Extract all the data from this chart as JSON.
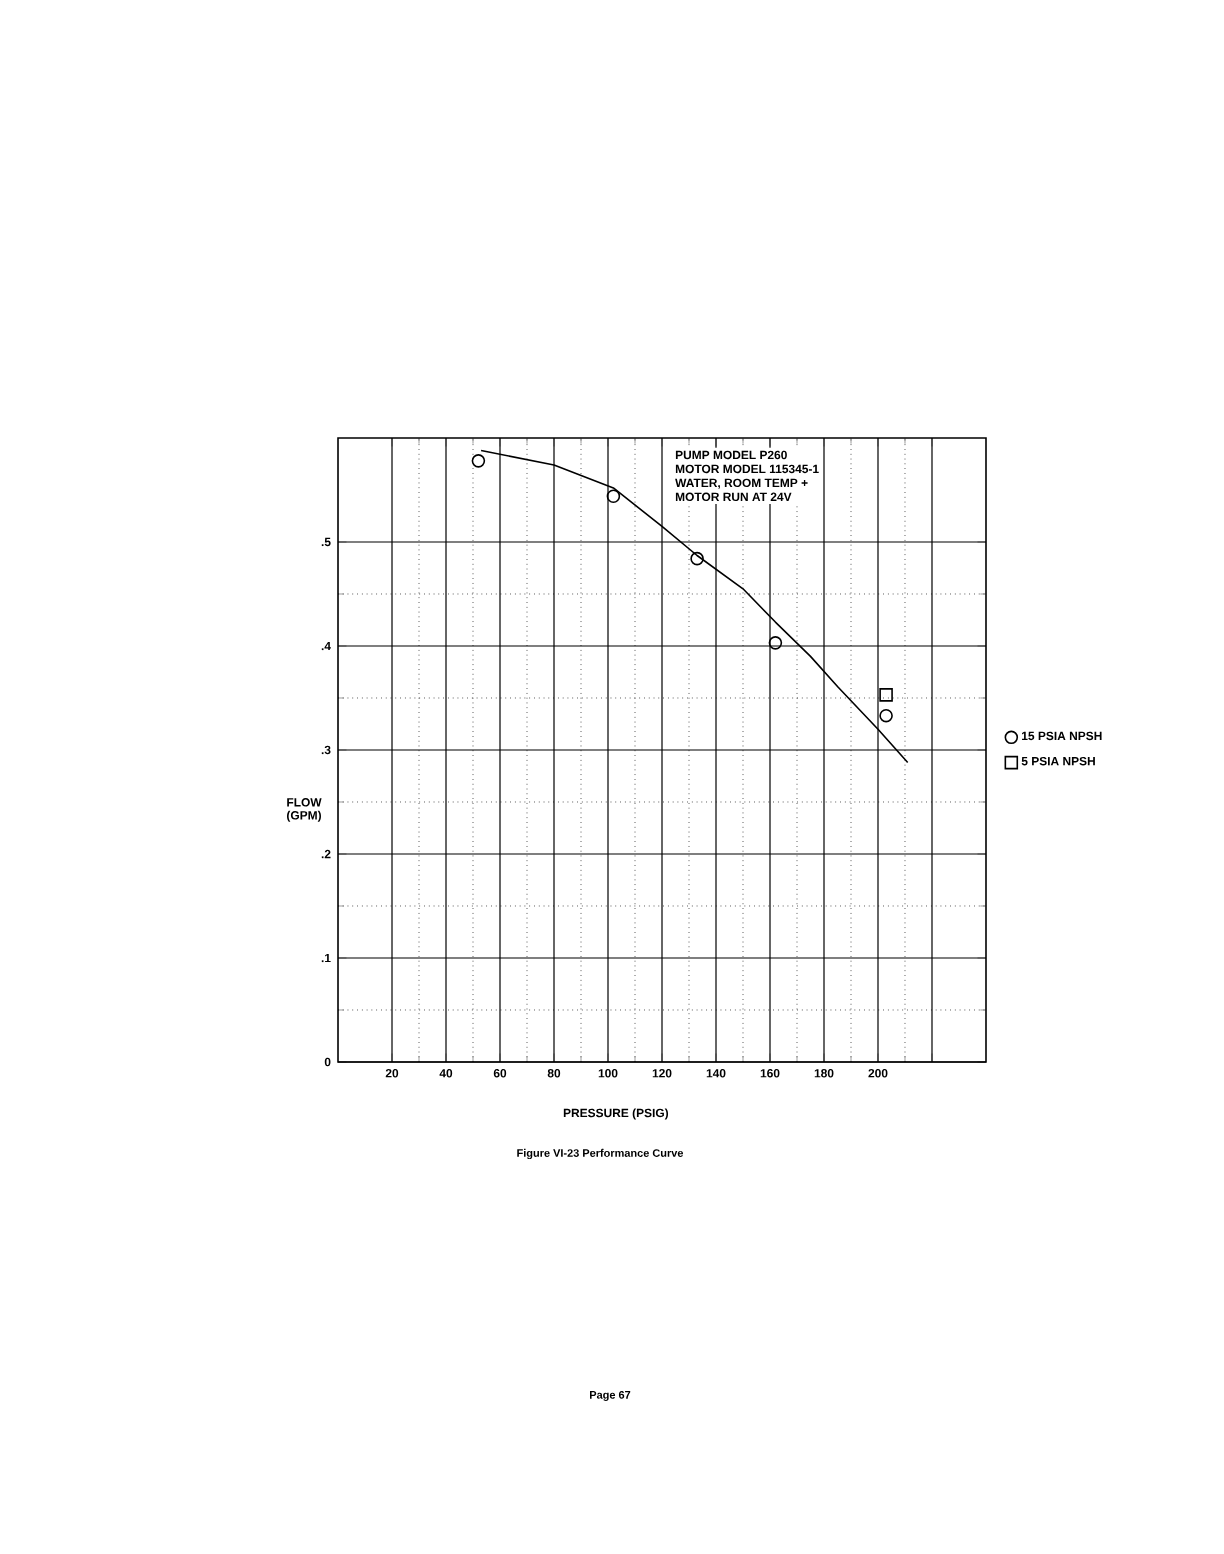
{
  "chart_data": {
    "type": "scatter",
    "title": "Figure VI-23  Performance Curve",
    "xlabel": "PRESSURE (PSIG)",
    "ylabel": "FLOW (GPM)",
    "annotations": [
      "PUMP MODEL P260",
      "MOTOR MODEL 115345-1",
      "WATER, ROOM TEMP +",
      "MOTOR RUN AT 24V",
      "Page 67"
    ],
    "xlim": [
      0,
      240
    ],
    "ylim": [
      0,
      0.6
    ],
    "xticks": [
      20,
      40,
      60,
      80,
      100,
      120,
      140,
      160,
      180,
      200,
      {
        "value": 220,
        "label": null
      }
    ],
    "yticks": [
      0,
      {
        "value": 0.1,
        "label": ".1"
      },
      {
        "value": 0.2,
        "label": ".2"
      },
      {
        "value": 0.3,
        "label": ".3"
      },
      {
        "value": 0.4,
        "label": ".4"
      },
      {
        "value": 0.5,
        "label": ".5"
      }
    ],
    "grid": true,
    "legend": "right",
    "series": [
      {
        "name": "15 PSIA NPSH",
        "marker": "circle",
        "color": "#000000",
        "x": [
          52,
          102,
          133,
          162,
          203
        ],
        "values": [
          0.578,
          0.544,
          0.484,
          0.403,
          0.333
        ]
      },
      {
        "name": "5 PSIA NPSH",
        "marker": "square",
        "color": "#000000",
        "x": [
          203
        ],
        "values": [
          0.353
        ]
      },
      {
        "type": "line",
        "color": "#000000",
        "x": [
          53,
          80,
          102,
          120,
          133,
          150,
          162,
          175,
          185,
          200,
          211
        ],
        "values": [
          0.588,
          0.574,
          0.552,
          0.515,
          0.487,
          0.455,
          0.423,
          0.39,
          0.361,
          0.32,
          0.288
        ]
      }
    ]
  }
}
